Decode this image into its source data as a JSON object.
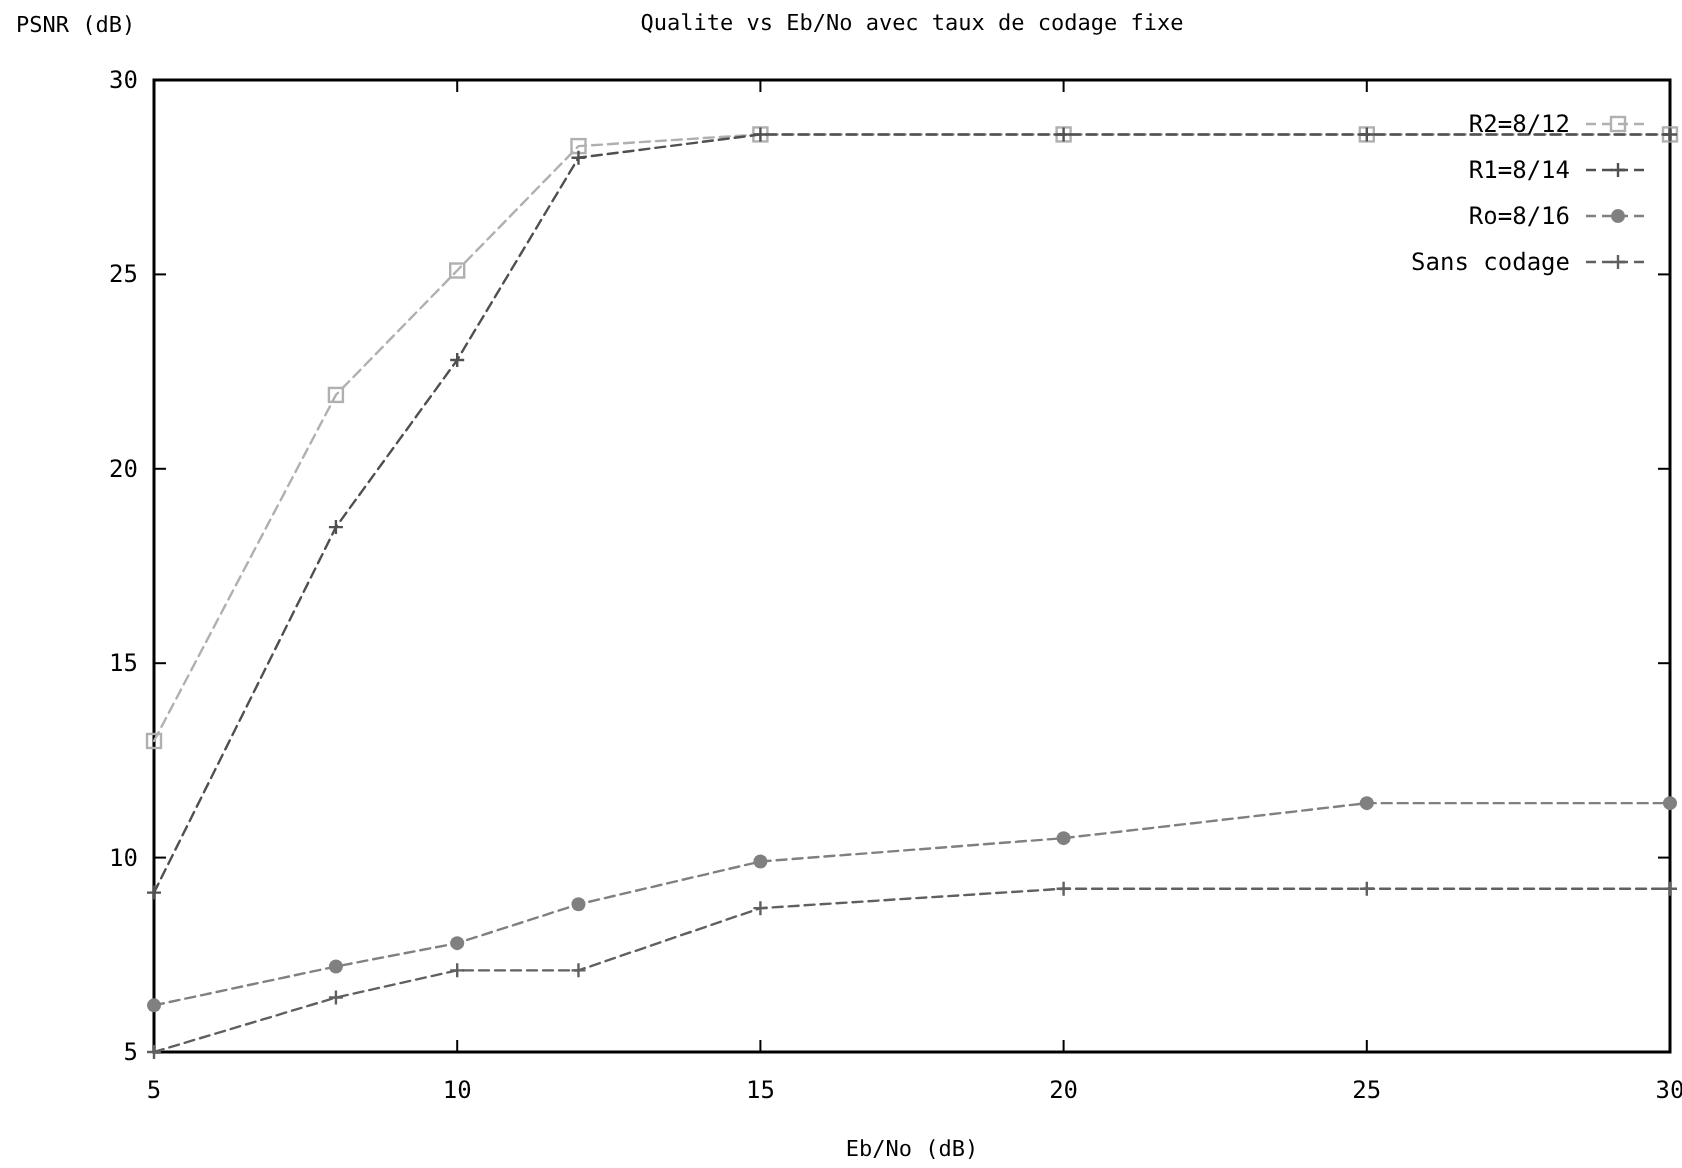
{
  "chart_data": {
    "type": "line",
    "title": "Qualite vs Eb/No avec taux de codage fixe",
    "xlabel": "Eb/No (dB)",
    "ylabel": "PSNR (dB)",
    "x": [
      5,
      8,
      10,
      12,
      15,
      20,
      25,
      30
    ],
    "series": [
      {
        "name": "R2=8/12",
        "color": "#b0b0b0",
        "marker": "square",
        "values": [
          13.0,
          21.9,
          25.1,
          28.3,
          28.6,
          28.6,
          28.6,
          28.6
        ]
      },
      {
        "name": "R1=8/14",
        "color": "#505050",
        "marker": "cross",
        "values": [
          9.1,
          18.5,
          22.8,
          28.0,
          28.6,
          28.6,
          28.6,
          28.6
        ]
      },
      {
        "name": "Ro=8/16",
        "color": "#808080",
        "marker": "circle",
        "values": [
          6.2,
          7.2,
          7.8,
          8.8,
          9.9,
          10.5,
          11.4,
          11.4
        ]
      },
      {
        "name": "Sans codage",
        "color": "#606060",
        "marker": "cross",
        "values": [
          5.0,
          6.4,
          7.1,
          7.1,
          8.7,
          9.2,
          9.2,
          9.2
        ]
      }
    ],
    "xlim": [
      5,
      30
    ],
    "xticks": [
      5,
      10,
      15,
      20,
      25,
      30
    ],
    "ylim": [
      5,
      30
    ],
    "yticks": [
      5,
      10,
      15,
      20,
      25,
      30
    ],
    "grid": false,
    "legend": "top right",
    "line_style": "dashed"
  }
}
